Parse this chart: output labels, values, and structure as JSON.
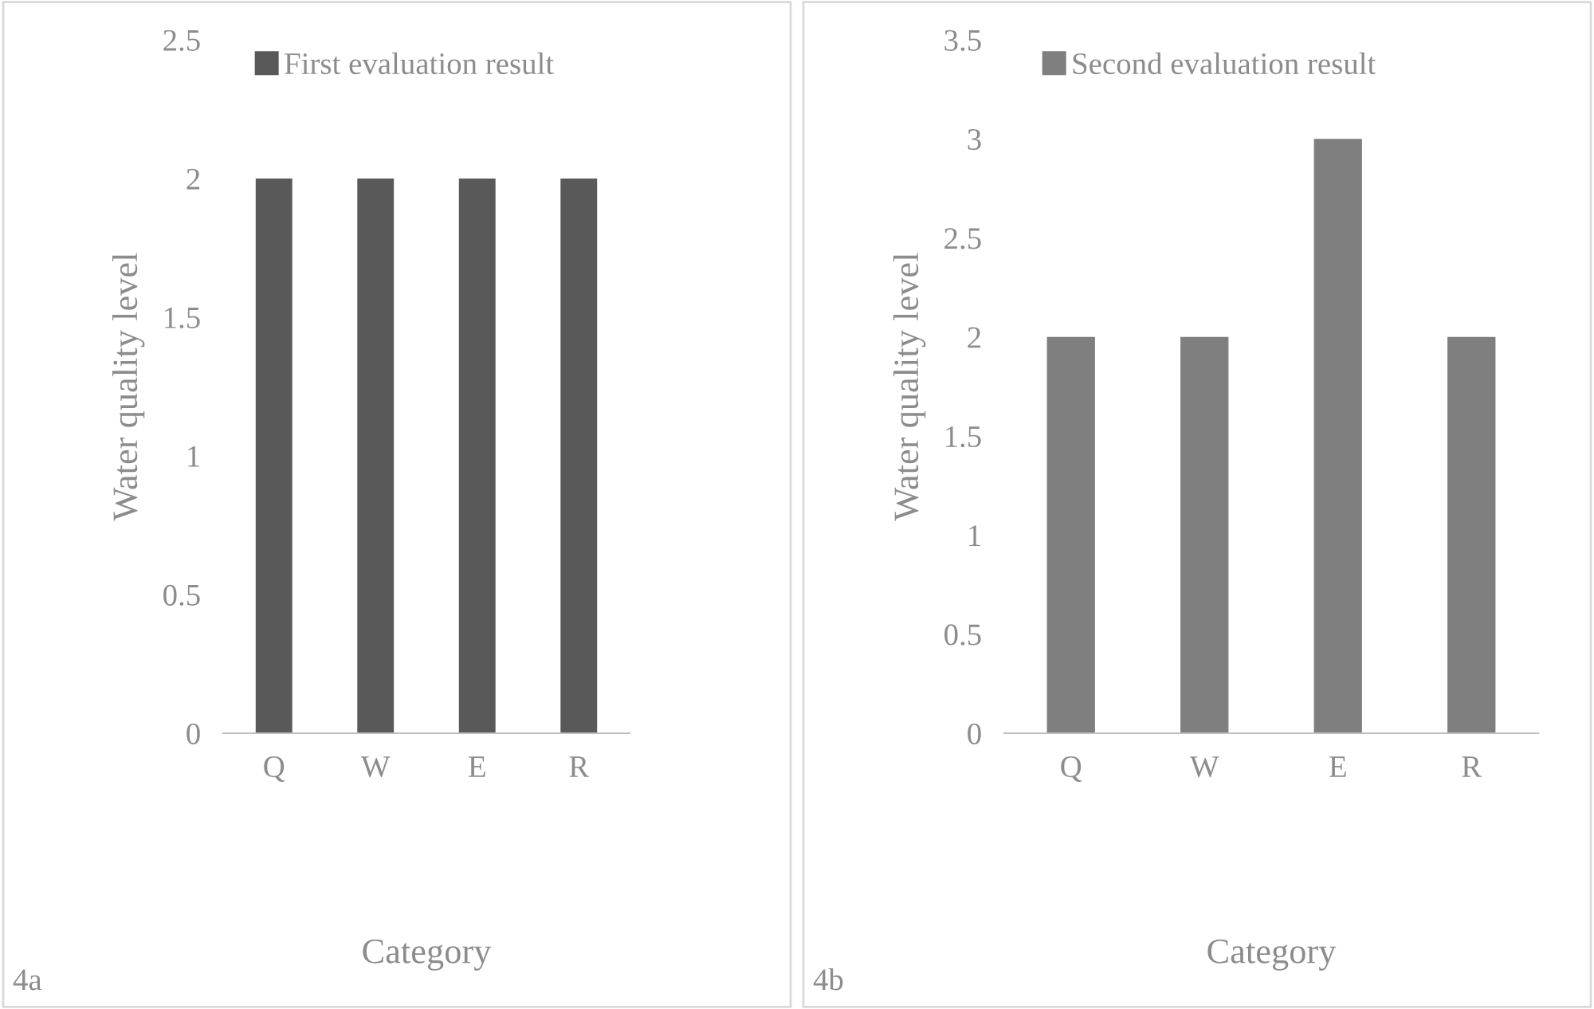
{
  "chart_data": [
    {
      "type": "bar",
      "categories": [
        "Q",
        "W",
        "E",
        "R"
      ],
      "series": [
        {
          "name": "First evaluation result",
          "color": "#595959",
          "values": [
            2,
            2,
            2,
            2
          ]
        }
      ],
      "ylabel": "Water quality level",
      "xlabel": "Category",
      "ylim": [
        0,
        2.5
      ],
      "yticks": [
        0,
        0.5,
        1,
        1.5,
        2,
        2.5
      ],
      "grid": false,
      "legend": "top left",
      "annotations": [
        "4a"
      ]
    },
    {
      "type": "bar",
      "categories": [
        "Q",
        "W",
        "E",
        "R"
      ],
      "series": [
        {
          "name": "Second evaluation result",
          "color": "#7f7f7f",
          "values": [
            2,
            2,
            3,
            2
          ]
        }
      ],
      "ylabel": "Water quality level",
      "xlabel": "Category",
      "ylim": [
        0,
        3.5
      ],
      "yticks": [
        0,
        0.5,
        1,
        1.5,
        2,
        2.5,
        3,
        3.5
      ],
      "grid": false,
      "legend": "top left",
      "annotations": [
        "4b"
      ]
    }
  ]
}
